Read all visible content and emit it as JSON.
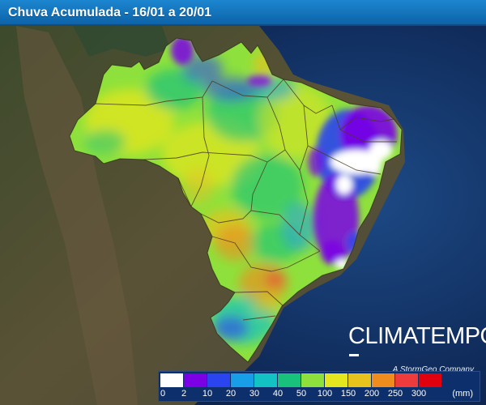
{
  "title": "Chuva Acumulada - 16/01 a 20/01",
  "logo": {
    "brand": "CLIMATEMPO",
    "tagline": "A StormGeo Company"
  },
  "legend": {
    "unit": "(mm)",
    "colors": [
      "#ffffff",
      "#7b00e6",
      "#2a44f0",
      "#189ee8",
      "#13c3c3",
      "#18c27a",
      "#8ee13c",
      "#e6e61e",
      "#e8c21d",
      "#f08c1e",
      "#ee3c3c",
      "#e0000e"
    ],
    "ticks": [
      "0",
      "2",
      "10",
      "20",
      "30",
      "40",
      "50",
      "100",
      "150",
      "200",
      "250",
      "300"
    ]
  }
}
